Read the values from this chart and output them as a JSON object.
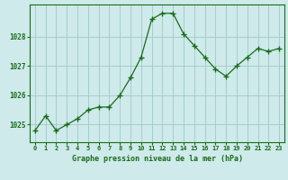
{
  "x": [
    0,
    1,
    2,
    3,
    4,
    5,
    6,
    7,
    8,
    9,
    10,
    11,
    12,
    13,
    14,
    15,
    16,
    17,
    18,
    19,
    20,
    21,
    22,
    23
  ],
  "y": [
    1024.8,
    1025.3,
    1024.8,
    1025.0,
    1025.2,
    1025.5,
    1025.6,
    1025.6,
    1026.0,
    1026.6,
    1027.3,
    1028.6,
    1028.8,
    1028.8,
    1028.1,
    1027.7,
    1027.3,
    1026.9,
    1026.65,
    1027.0,
    1027.3,
    1027.6,
    1027.5,
    1027.6
  ],
  "ylim": [
    1024.4,
    1029.1
  ],
  "yticks": [
    1025,
    1026,
    1027,
    1028
  ],
  "xticks": [
    0,
    1,
    2,
    3,
    4,
    5,
    6,
    7,
    8,
    9,
    10,
    11,
    12,
    13,
    14,
    15,
    16,
    17,
    18,
    19,
    20,
    21,
    22,
    23
  ],
  "line_color": "#1a6b1a",
  "marker_color": "#1a6b1a",
  "bg_color": "#ceeaea",
  "grid_color": "#a0c8c8",
  "xlabel": "Graphe pression niveau de la mer (hPa)",
  "xlabel_color": "#1a6b1a",
  "tick_color": "#1a6b1a",
  "axis_color": "#1a6b1a",
  "border_color": "#1a6b1a"
}
